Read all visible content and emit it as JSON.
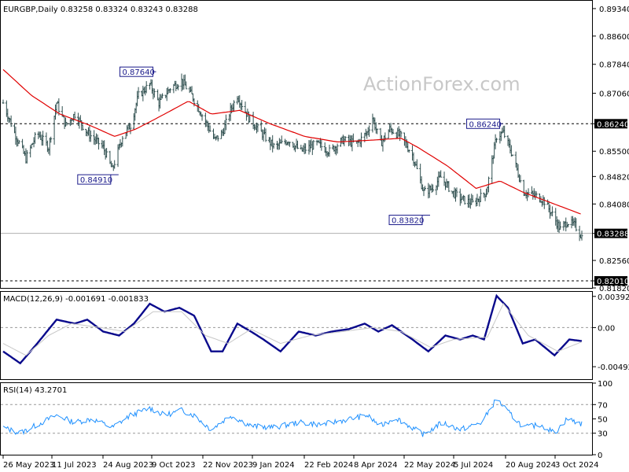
{
  "chart_data": [
    {
      "type": "candlestick",
      "header": "EURGBP,Daily  0.83258 0.83324 0.83243 0.83288",
      "watermark": "ActionForex.com",
      "ylim": [
        0.8182,
        0.8955
      ],
      "y_ticks": [
        "0.89340",
        "0.88600",
        "0.87840",
        "0.87060",
        "0.86240",
        "0.85500",
        "0.84820",
        "0.84080",
        "0.83288",
        "0.82560",
        "0.82010",
        "0.81820"
      ],
      "last_price": "0.83288",
      "support_level": "0.82010",
      "resistance_level": "0.86240",
      "annotations": [
        {
          "label": "0.87640",
          "date": "2023-10-02",
          "value": 0.8764
        },
        {
          "label": "0.84910",
          "date": "2023-08-30",
          "value": 0.8491
        },
        {
          "label": "0.83820",
          "date": "2024-05-30",
          "value": 0.8382
        },
        {
          "label": "0.86240",
          "date": "2024-08-02",
          "value": 0.8624
        }
      ],
      "x_ticks": [
        "26 May 2023",
        "11 Jul 2023",
        "24 Aug 2023",
        "9 Oct 2023",
        "22 Nov 2023",
        "9 Jan 2024",
        "22 Feb 2024",
        "8 Apr 2024",
        "22 May 2024",
        "5 Jul 2024",
        "20 Aug 2024",
        "3 Oct 2024"
      ],
      "price_key_points": [
        [
          "2023-05-26",
          0.868
        ],
        [
          "2023-06-05",
          0.86
        ],
        [
          "2023-06-15",
          0.853
        ],
        [
          "2023-06-25",
          0.86
        ],
        [
          "2023-07-05",
          0.856
        ],
        [
          "2023-07-12",
          0.868
        ],
        [
          "2023-07-20",
          0.862
        ],
        [
          "2023-07-28",
          0.865
        ],
        [
          "2023-08-08",
          0.86
        ],
        [
          "2023-08-22",
          0.856
        ],
        [
          "2023-08-30",
          0.85
        ],
        [
          "2023-09-08",
          0.859
        ],
        [
          "2023-09-15",
          0.862
        ],
        [
          "2023-09-22",
          0.87
        ],
        [
          "2023-10-02",
          0.873
        ],
        [
          "2023-10-10",
          0.868
        ],
        [
          "2023-10-20",
          0.872
        ],
        [
          "2023-10-30",
          0.874
        ],
        [
          "2023-11-08",
          0.87
        ],
        [
          "2023-11-20",
          0.863
        ],
        [
          "2023-11-28",
          0.858
        ],
        [
          "2023-12-05",
          0.86
        ],
        [
          "2023-12-12",
          0.866
        ],
        [
          "2023-12-18",
          0.87
        ],
        [
          "2023-12-28",
          0.864
        ],
        [
          "2024-01-08",
          0.86
        ],
        [
          "2024-01-20",
          0.856
        ],
        [
          "2024-02-01",
          0.858
        ],
        [
          "2024-02-12",
          0.855
        ],
        [
          "2024-02-26",
          0.857
        ],
        [
          "2024-03-08",
          0.855
        ],
        [
          "2024-03-20",
          0.858
        ],
        [
          "2024-04-01",
          0.857
        ],
        [
          "2024-04-10",
          0.86
        ],
        [
          "2024-04-15",
          0.864
        ],
        [
          "2024-04-22",
          0.857
        ],
        [
          "2024-04-30",
          0.861
        ],
        [
          "2024-05-10",
          0.859
        ],
        [
          "2024-05-20",
          0.854
        ],
        [
          "2024-05-30",
          0.844
        ],
        [
          "2024-06-06",
          0.845
        ],
        [
          "2024-06-14",
          0.848
        ],
        [
          "2024-06-24",
          0.844
        ],
        [
          "2024-07-03",
          0.842
        ],
        [
          "2024-07-12",
          0.841
        ],
        [
          "2024-07-24",
          0.844
        ],
        [
          "2024-08-02",
          0.859
        ],
        [
          "2024-08-08",
          0.86
        ],
        [
          "2024-08-16",
          0.854
        ],
        [
          "2024-08-26",
          0.844
        ],
        [
          "2024-09-05",
          0.843
        ],
        [
          "2024-09-12",
          0.842
        ],
        [
          "2024-09-20",
          0.838
        ],
        [
          "2024-09-27",
          0.834
        ],
        [
          "2024-10-03",
          0.836
        ],
        [
          "2024-10-10",
          0.835
        ],
        [
          "2024-10-16",
          0.832
        ],
        [
          "2024-10-22",
          0.833
        ]
      ],
      "ma_key_points": [
        [
          "2023-05-26",
          0.877
        ],
        [
          "2023-06-20",
          0.87
        ],
        [
          "2023-07-15",
          0.865
        ],
        [
          "2023-08-10",
          0.862
        ],
        [
          "2023-09-01",
          0.859
        ],
        [
          "2023-09-20",
          0.861
        ],
        [
          "2023-10-15",
          0.865
        ],
        [
          "2023-11-05",
          0.8685
        ],
        [
          "2023-11-25",
          0.865
        ],
        [
          "2023-12-20",
          0.866
        ],
        [
          "2024-01-15",
          0.8625
        ],
        [
          "2024-02-15",
          0.859
        ],
        [
          "2024-03-15",
          0.8575
        ],
        [
          "2024-04-15",
          0.858
        ],
        [
          "2024-05-10",
          0.8585
        ],
        [
          "2024-05-25",
          0.856
        ],
        [
          "2024-06-20",
          0.851
        ],
        [
          "2024-07-15",
          0.845
        ],
        [
          "2024-08-05",
          0.847
        ],
        [
          "2024-08-25",
          0.844
        ],
        [
          "2024-09-20",
          0.841
        ],
        [
          "2024-10-16",
          0.838
        ]
      ]
    },
    {
      "type": "line",
      "title": "MACD(12,26,9) -0.001691 -0.001833",
      "ylim": [
        -0.0065,
        0.0045
      ],
      "y_ticks": [
        "0.003928",
        "0.00",
        "-0.004929"
      ],
      "series": [
        {
          "name": "MACD",
          "key_points": [
            [
              "2023-05-26",
              -0.003
            ],
            [
              "2023-06-10",
              -0.0045
            ],
            [
              "2023-06-25",
              -0.002
            ],
            [
              "2023-07-12",
              0.001
            ],
            [
              "2023-07-28",
              0.0005
            ],
            [
              "2023-08-08",
              0.001
            ],
            [
              "2023-08-22",
              -0.0005
            ],
            [
              "2023-09-05",
              -0.001
            ],
            [
              "2023-09-18",
              0.0005
            ],
            [
              "2023-10-02",
              0.003
            ],
            [
              "2023-10-15",
              0.002
            ],
            [
              "2023-10-28",
              0.0025
            ],
            [
              "2023-11-10",
              0.0015
            ],
            [
              "2023-11-25",
              -0.003
            ],
            [
              "2023-12-05",
              -0.003
            ],
            [
              "2023-12-18",
              0.0005
            ],
            [
              "2023-12-30",
              -0.0005
            ],
            [
              "2024-01-10",
              -0.0015
            ],
            [
              "2024-01-25",
              -0.003
            ],
            [
              "2024-02-10",
              -0.0005
            ],
            [
              "2024-02-25",
              -0.001
            ],
            [
              "2024-03-10",
              -0.0005
            ],
            [
              "2024-03-25",
              -0.0002
            ],
            [
              "2024-04-08",
              0.0005
            ],
            [
              "2024-04-20",
              -0.0005
            ],
            [
              "2024-05-02",
              0.0003
            ],
            [
              "2024-05-20",
              -0.0015
            ],
            [
              "2024-06-03",
              -0.003
            ],
            [
              "2024-06-18",
              -0.001
            ],
            [
              "2024-07-01",
              -0.0015
            ],
            [
              "2024-07-12",
              -0.001
            ],
            [
              "2024-07-22",
              -0.0015
            ],
            [
              "2024-08-02",
              0.004
            ],
            [
              "2024-08-12",
              0.0025
            ],
            [
              "2024-08-25",
              -0.002
            ],
            [
              "2024-09-05",
              -0.0015
            ],
            [
              "2024-09-22",
              -0.0035
            ],
            [
              "2024-10-05",
              -0.0015
            ],
            [
              "2024-10-16",
              -0.0017
            ]
          ]
        },
        {
          "name": "Signal",
          "key_points": [
            [
              "2023-05-26",
              -0.002
            ],
            [
              "2023-06-15",
              -0.0035
            ],
            [
              "2023-07-05",
              -0.001
            ],
            [
              "2023-07-25",
              0.0005
            ],
            [
              "2023-08-20",
              0.0
            ],
            [
              "2023-09-10",
              -0.0005
            ],
            [
              "2023-10-05",
              0.002
            ],
            [
              "2023-10-30",
              0.002
            ],
            [
              "2023-11-20",
              -0.001
            ],
            [
              "2023-12-10",
              -0.002
            ],
            [
              "2023-12-30",
              -0.0002
            ],
            [
              "2024-01-25",
              -0.002
            ],
            [
              "2024-02-20",
              -0.001
            ],
            [
              "2024-03-20",
              -0.0005
            ],
            [
              "2024-04-15",
              0.0
            ],
            [
              "2024-05-10",
              -0.0005
            ],
            [
              "2024-06-05",
              -0.0025
            ],
            [
              "2024-06-25",
              -0.0015
            ],
            [
              "2024-07-25",
              -0.0012
            ],
            [
              "2024-08-08",
              0.003
            ],
            [
              "2024-08-30",
              -0.001
            ],
            [
              "2024-09-25",
              -0.003
            ],
            [
              "2024-10-16",
              -0.0018
            ]
          ]
        }
      ]
    },
    {
      "type": "line",
      "title": "RSI(14) 43.2701",
      "ylim": [
        0,
        100
      ],
      "y_ticks": [
        "100",
        "70",
        "50",
        "30",
        "0"
      ],
      "series": [
        {
          "name": "RSI",
          "key_points": [
            [
              "2023-05-26",
              38
            ],
            [
              "2023-06-10",
              30
            ],
            [
              "2023-06-25",
              42
            ],
            [
              "2023-07-12",
              55
            ],
            [
              "2023-07-28",
              45
            ],
            [
              "2023-08-12",
              50
            ],
            [
              "2023-08-30",
              38
            ],
            [
              "2023-09-15",
              55
            ],
            [
              "2023-10-02",
              65
            ],
            [
              "2023-10-15",
              55
            ],
            [
              "2023-10-30",
              62
            ],
            [
              "2023-11-10",
              55
            ],
            [
              "2023-11-25",
              35
            ],
            [
              "2023-12-12",
              55
            ],
            [
              "2023-12-30",
              40
            ],
            [
              "2024-01-20",
              38
            ],
            [
              "2024-02-10",
              45
            ],
            [
              "2024-03-01",
              42
            ],
            [
              "2024-03-20",
              48
            ],
            [
              "2024-04-10",
              55
            ],
            [
              "2024-04-22",
              40
            ],
            [
              "2024-05-05",
              52
            ],
            [
              "2024-05-30",
              28
            ],
            [
              "2024-06-15",
              45
            ],
            [
              "2024-07-01",
              35
            ],
            [
              "2024-07-20",
              45
            ],
            [
              "2024-08-02",
              78
            ],
            [
              "2024-08-12",
              60
            ],
            [
              "2024-08-26",
              38
            ],
            [
              "2024-09-10",
              42
            ],
            [
              "2024-09-22",
              30
            ],
            [
              "2024-10-03",
              50
            ],
            [
              "2024-10-16",
              43
            ]
          ]
        }
      ]
    }
  ]
}
